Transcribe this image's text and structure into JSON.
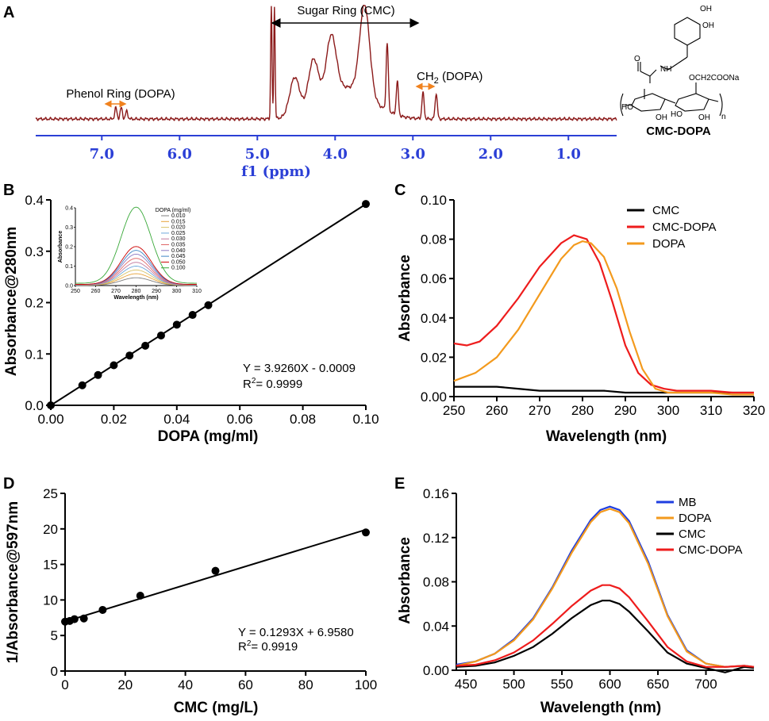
{
  "panel_labels": {
    "a": "A",
    "b": "B",
    "c": "C",
    "d": "D",
    "e": "E"
  },
  "chart_data": [
    {
      "panel": "A",
      "type": "line",
      "title": "",
      "xlabel": "f1 (ppm)",
      "xlim": [
        7.85,
        0.38
      ],
      "ticks": [
        "7.0",
        "6.0",
        "5.0",
        "4.0",
        "3.0",
        "2.0",
        "1.0"
      ],
      "tick_values": [
        7.0,
        6.0,
        5.0,
        4.0,
        3.0,
        2.0,
        1.0
      ],
      "annotations": {
        "sugar": "Sugar Ring (CMC)",
        "phenol": "Phenol Ring (DOPA)",
        "ch2_prefix": "CH",
        "ch2_sub": "2",
        "ch2_suffix": " (DOPA)"
      },
      "peaks": [
        {
          "ppm": 6.82,
          "h": 0.1
        },
        {
          "ppm": 6.75,
          "h": 0.1
        },
        {
          "ppm": 6.68,
          "h": 0.07
        },
        {
          "ppm": 4.82,
          "h": 1.0
        },
        {
          "ppm": 4.78,
          "h": 1.0
        },
        {
          "ppm": 4.52,
          "h": 0.34
        },
        {
          "ppm": 4.28,
          "h": 0.42
        },
        {
          "ppm": 4.05,
          "h": 0.52
        },
        {
          "ppm": 3.62,
          "h": 0.8
        },
        {
          "ppm": 3.33,
          "h": 0.6
        },
        {
          "ppm": 3.2,
          "h": 0.3
        },
        {
          "ppm": 2.87,
          "h": 0.23
        },
        {
          "ppm": 2.7,
          "h": 0.23
        }
      ],
      "molecule": {
        "name": "CMC-DOPA",
        "oh1": "OH",
        "oh2": "OH",
        "nh": "NH",
        "o": "O",
        "side": "OCH2COONa",
        "ho1": "HO",
        "ho2": "HO",
        "oh3": "OH",
        "oh4": "OH",
        "n": "n"
      }
    },
    {
      "panel": "B",
      "type": "scatter",
      "xlabel": "DOPA (mg/ml)",
      "ylabel": "Absorbance@280nm",
      "xlim": [
        0,
        0.1
      ],
      "ylim": [
        0,
        0.4
      ],
      "xticks": [
        "0.00",
        "0.02",
        "0.04",
        "0.06",
        "0.08",
        "0.10"
      ],
      "yticks": [
        "0.0",
        "0.1",
        "0.2",
        "0.3",
        "0.4"
      ],
      "x": [
        0,
        0.01,
        0.015,
        0.02,
        0.025,
        0.03,
        0.035,
        0.04,
        0.045,
        0.05,
        0.1
      ],
      "y": [
        0,
        0.039,
        0.059,
        0.078,
        0.097,
        0.116,
        0.136,
        0.157,
        0.176,
        0.195,
        0.392
      ],
      "fit": {
        "slope": 3.926,
        "intercept": -0.0009
      },
      "equation": "Y  = 3.9260X - 0.0009",
      "r2_label": "R",
      "r2_sup": "2",
      "r2_value": "= 0.9999",
      "inset": {
        "title": "DOPA (mg/ml)",
        "xlabel": "Wavelength (nm)",
        "ylabel": "Absorbance",
        "xticks": [
          "250",
          "260",
          "270",
          "280",
          "290",
          "300",
          "310"
        ],
        "yticks": [
          "0.0",
          "0.1",
          "0.2",
          "0.3",
          "0.4"
        ],
        "series": [
          {
            "name": "0.010",
            "peak": 0.039,
            "color": "#7f7f7f"
          },
          {
            "name": "0.015",
            "peak": 0.059,
            "color": "#e8a33a"
          },
          {
            "name": "0.020",
            "peak": 0.078,
            "color": "#d9c36a"
          },
          {
            "name": "0.025",
            "peak": 0.097,
            "color": "#6fa8dc"
          },
          {
            "name": "0.030",
            "peak": 0.116,
            "color": "#c27ba0"
          },
          {
            "name": "0.035",
            "peak": 0.136,
            "color": "#e06666"
          },
          {
            "name": "0.040",
            "peak": 0.157,
            "color": "#8e7cc3"
          },
          {
            "name": "0.045",
            "peak": 0.176,
            "color": "#3d85c6"
          },
          {
            "name": "0.050",
            "peak": 0.195,
            "color": "#cc0000"
          },
          {
            "name": "0.100",
            "peak": 0.392,
            "color": "#38a838"
          }
        ]
      }
    },
    {
      "panel": "C",
      "type": "line",
      "xlabel": "Wavelength (nm)",
      "ylabel": "Absorbance",
      "xlim": [
        250,
        320
      ],
      "ylim": [
        0,
        0.1
      ],
      "xticks": [
        "250",
        "260",
        "270",
        "280",
        "290",
        "300",
        "310",
        "320"
      ],
      "yticks": [
        "0.00",
        "0.02",
        "0.04",
        "0.06",
        "0.08",
        "0.10"
      ],
      "series": [
        {
          "name": "CMC",
          "color": "#000000",
          "x": [
            250,
            255,
            260,
            265,
            270,
            280,
            285,
            290,
            300,
            310,
            320
          ],
          "y": [
            0.005,
            0.005,
            0.005,
            0.004,
            0.003,
            0.003,
            0.003,
            0.002,
            0.002,
            0.002,
            0.002
          ]
        },
        {
          "name": "CMC-DOPA",
          "color": "#ee1c1c",
          "x": [
            250,
            253,
            256,
            260,
            265,
            270,
            275,
            278,
            281,
            284,
            287,
            290,
            293,
            296,
            299,
            302,
            306,
            310,
            315,
            320
          ],
          "y": [
            0.027,
            0.026,
            0.028,
            0.036,
            0.05,
            0.066,
            0.078,
            0.082,
            0.08,
            0.068,
            0.048,
            0.026,
            0.012,
            0.006,
            0.004,
            0.003,
            0.003,
            0.003,
            0.002,
            0.002
          ]
        },
        {
          "name": "DOPA",
          "color": "#f39a1d",
          "x": [
            250,
            255,
            260,
            265,
            270,
            275,
            278,
            280,
            282,
            285,
            288,
            291,
            294,
            297,
            300,
            305,
            310,
            315,
            320
          ],
          "y": [
            0.008,
            0.012,
            0.02,
            0.034,
            0.052,
            0.07,
            0.077,
            0.079,
            0.078,
            0.071,
            0.055,
            0.033,
            0.014,
            0.004,
            0.002,
            0.002,
            0.002,
            0.001,
            0.001
          ]
        }
      ]
    },
    {
      "panel": "D",
      "type": "scatter",
      "xlabel": "CMC (mg/L)",
      "ylabel": "1/Absorbance@597nm",
      "xlim": [
        0,
        100
      ],
      "ylim": [
        0,
        25
      ],
      "xticks": [
        "0",
        "20",
        "40",
        "60",
        "80",
        "100"
      ],
      "yticks": [
        "0",
        "5",
        "10",
        "15",
        "20",
        "25"
      ],
      "x": [
        0,
        1.56,
        3.12,
        6.25,
        12.5,
        25,
        50,
        100
      ],
      "y": [
        6.95,
        7.05,
        7.3,
        7.4,
        8.6,
        10.6,
        14.1,
        19.5
      ],
      "fit": {
        "slope": 0.1293,
        "intercept": 6.958
      },
      "equation": "Y = 0.1293X + 6.9580",
      "r2_label": "R",
      "r2_sup": "2",
      "r2_value": "= 0.9919"
    },
    {
      "panel": "E",
      "type": "line",
      "xlabel": "Wavelength (nm)",
      "ylabel": "Absorbance",
      "xlim": [
        440,
        750
      ],
      "ylim": [
        0,
        0.16
      ],
      "xticks": [
        "450",
        "500",
        "550",
        "600",
        "650",
        "700"
      ],
      "yticks": [
        "0.00",
        "0.04",
        "0.08",
        "0.12",
        "0.16"
      ],
      "series": [
        {
          "name": "MB",
          "color": "#1f3ee0",
          "x": [
            440,
            460,
            480,
            500,
            520,
            540,
            560,
            580,
            590,
            600,
            610,
            620,
            640,
            660,
            680,
            700,
            720,
            740,
            750
          ],
          "y": [
            0.005,
            0.008,
            0.015,
            0.028,
            0.047,
            0.075,
            0.108,
            0.136,
            0.145,
            0.148,
            0.145,
            0.135,
            0.098,
            0.05,
            0.018,
            0.006,
            0.003,
            0.004,
            0.003
          ]
        },
        {
          "name": "DOPA",
          "color": "#f39a1d",
          "x": [
            440,
            460,
            480,
            500,
            520,
            540,
            560,
            580,
            590,
            600,
            610,
            620,
            640,
            660,
            680,
            700,
            720,
            740,
            750
          ],
          "y": [
            0.004,
            0.008,
            0.015,
            0.027,
            0.046,
            0.074,
            0.106,
            0.134,
            0.143,
            0.146,
            0.143,
            0.133,
            0.096,
            0.049,
            0.017,
            0.006,
            0.003,
            0.004,
            0.003
          ]
        },
        {
          "name": "CMC",
          "color": "#000000",
          "x": [
            440,
            460,
            480,
            500,
            520,
            540,
            560,
            580,
            592,
            600,
            610,
            620,
            640,
            660,
            680,
            700,
            720,
            740,
            750
          ],
          "y": [
            0.003,
            0.004,
            0.007,
            0.013,
            0.021,
            0.033,
            0.047,
            0.059,
            0.063,
            0.063,
            0.06,
            0.053,
            0.035,
            0.016,
            0.006,
            0.002,
            -0.002,
            0.003,
            0.002
          ]
        },
        {
          "name": "CMC-DOPA",
          "color": "#ee1c1c",
          "x": [
            440,
            460,
            480,
            500,
            520,
            540,
            560,
            580,
            592,
            600,
            610,
            620,
            640,
            660,
            680,
            700,
            720,
            740,
            750
          ],
          "y": [
            0.004,
            0.005,
            0.009,
            0.016,
            0.027,
            0.042,
            0.058,
            0.072,
            0.077,
            0.077,
            0.074,
            0.066,
            0.044,
            0.021,
            0.008,
            0.003,
            0.003,
            0.004,
            0.003
          ]
        }
      ]
    }
  ]
}
